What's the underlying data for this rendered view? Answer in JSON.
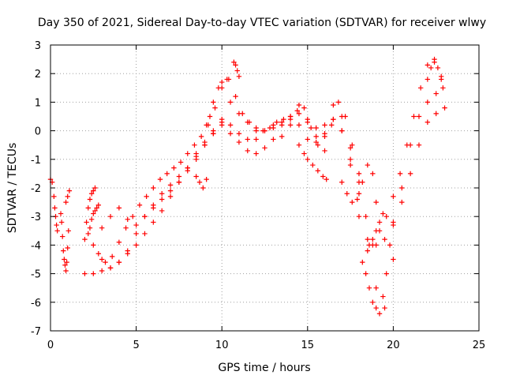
{
  "chart_data": {
    "type": "scatter",
    "title": "Day 350 of 2021, Sidereal Day-to-day VTEC variation (SDTVAR) for receiver wlwy",
    "xlabel": "GPS time / hours",
    "ylabel": "SDTVAR / TECUs",
    "xlim": [
      0,
      25
    ],
    "ylim": [
      -7,
      3
    ],
    "x_ticks": [
      0,
      5,
      10,
      15,
      20,
      25
    ],
    "y_ticks": [
      -7,
      -6,
      -5,
      -4,
      -3,
      -2,
      -1,
      0,
      1,
      2,
      3
    ],
    "grid": true,
    "marker": "plus",
    "color": "#ff0000",
    "series": [
      {
        "x": [
          0.0,
          0.1,
          0.2,
          0.25,
          0.3,
          0.35,
          0.4
        ],
        "y": [
          -1.7,
          -1.8,
          -2.3,
          -2.7,
          -3.0,
          -3.3,
          -3.5
        ]
      },
      {
        "x": [
          0.6,
          0.65,
          0.7,
          0.75,
          0.8,
          0.85,
          0.9,
          0.95,
          1.0,
          1.05
        ],
        "y": [
          -2.9,
          -3.2,
          -3.7,
          -4.2,
          -4.5,
          -4.7,
          -4.9,
          -4.6,
          -4.1,
          -3.5
        ]
      },
      {
        "x": [
          0.9,
          1.0,
          1.1
        ],
        "y": [
          -2.5,
          -2.3,
          -2.1
        ]
      },
      {
        "x": [
          2.0,
          2.1,
          2.2,
          2.3,
          2.4,
          2.5,
          2.6
        ],
        "y": [
          -3.8,
          -3.2,
          -2.7,
          -2.4,
          -2.2,
          -2.1,
          -2.0
        ]
      },
      {
        "x": [
          2.2,
          2.3,
          2.4,
          2.5,
          2.6,
          2.7,
          2.8
        ],
        "y": [
          -3.6,
          -3.4,
          -3.1,
          -2.9,
          -2.8,
          -2.7,
          -2.6
        ]
      },
      {
        "x": [
          2.0,
          2.5,
          3.0,
          3.5,
          4.0,
          4.5,
          5.0,
          5.5,
          6.0,
          6.5,
          7.0,
          7.5,
          8.0,
          8.5,
          9.0,
          9.5,
          10.0,
          10.5,
          11.0,
          11.5,
          12.0,
          12.5,
          13.0,
          13.5,
          14.0,
          14.5,
          15.0,
          15.5,
          16.0,
          16.5,
          17.0,
          17.5,
          18.0,
          18.5,
          19.0,
          19.5,
          20.0,
          20.5,
          21.0,
          21.5,
          22.0,
          22.5,
          23.0
        ],
        "y": [
          -5.0,
          -5.0,
          -4.9,
          -4.8,
          -4.6,
          -4.3,
          -4.0,
          -3.6,
          -3.2,
          -2.8,
          -2.3,
          -1.8,
          -1.3,
          -0.8,
          -0.4,
          0.0,
          0.3,
          0.2,
          -0.1,
          -0.3,
          -0.3,
          0.0,
          0.2,
          0.3,
          0.4,
          0.2,
          -0.3,
          -0.4,
          -0.1,
          0.4,
          0.0,
          -1.2,
          -3.0,
          -4.2,
          -4.0,
          -3.8,
          -3.3,
          -2.5,
          -1.5,
          -0.5,
          0.3,
          0.6,
          0.8
        ]
      },
      {
        "x": [
          2.5,
          3.0,
          3.5,
          4.0,
          4.5,
          5.0,
          5.5,
          6.0,
          6.5,
          7.0,
          7.5,
          8.0,
          8.5,
          9.0,
          9.5,
          10.0,
          10.5,
          11.0,
          11.5,
          12.0,
          12.5,
          13.0,
          13.5,
          14.0,
          14.5,
          15.0,
          15.5,
          16.0,
          16.5,
          17.0,
          17.5,
          18.0,
          18.5,
          19.0,
          19.5,
          20.0,
          20.5,
          21.0,
          21.5,
          22.0,
          22.5
        ],
        "y": [
          -4.0,
          -4.5,
          -4.8,
          -4.6,
          -4.2,
          -3.6,
          -3.0,
          -2.6,
          -2.2,
          -1.9,
          -1.6,
          -1.3,
          -0.9,
          -0.5,
          -0.1,
          0.4,
          1.0,
          0.6,
          0.3,
          0.0,
          0.0,
          0.1,
          0.2,
          0.5,
          0.9,
          0.4,
          -0.2,
          0.2,
          0.9,
          0.5,
          -0.6,
          -2.2,
          -3.8,
          -5.5,
          -6.2,
          -4.5,
          -2.0,
          -0.5,
          0.5,
          1.0,
          1.3
        ]
      },
      {
        "x": [
          2.8,
          3.2,
          3.6,
          4.0,
          4.4,
          4.8,
          5.2,
          5.6,
          6.0,
          6.4,
          6.8,
          7.2,
          7.6,
          8.0,
          8.4,
          8.8,
          9.2,
          9.6,
          10.0,
          10.4,
          10.8,
          11.2,
          11.6,
          12.0,
          12.4,
          12.8,
          13.2,
          13.6,
          14.0,
          14.4,
          14.8,
          15.2,
          15.6,
          16.0,
          16.4,
          16.8,
          17.2,
          17.6,
          18.0,
          18.4,
          18.8,
          19.2,
          19.6,
          20.0,
          20.4,
          20.8,
          21.2,
          21.6,
          22.0,
          22.4,
          22.8
        ],
        "y": [
          -4.3,
          -4.6,
          -4.4,
          -3.9,
          -3.4,
          -3.0,
          -2.6,
          -2.3,
          -2.0,
          -1.7,
          -1.5,
          -1.3,
          -1.1,
          -0.8,
          -0.5,
          -0.2,
          0.2,
          0.8,
          1.5,
          1.8,
          1.2,
          0.6,
          0.3,
          0.1,
          0.0,
          0.1,
          0.3,
          0.4,
          0.5,
          0.7,
          0.8,
          0.1,
          -0.5,
          -0.7,
          0.2,
          1.0,
          0.5,
          -0.5,
          -1.8,
          -3.0,
          -4.0,
          -3.5,
          -3.0,
          -2.3,
          -1.5,
          -0.5,
          0.5,
          1.5,
          2.3,
          2.4,
          1.8
        ]
      },
      {
        "x": [
          3.0,
          3.5,
          4.0,
          4.5,
          5.0,
          5.5,
          6.0,
          6.5,
          7.0,
          7.5,
          8.0,
          8.5,
          9.0,
          9.5,
          10.0,
          10.5,
          11.0,
          11.5,
          12.0,
          12.5,
          13.0,
          13.5,
          14.0,
          14.5,
          15.0,
          15.5,
          16.0,
          16.5,
          17.0,
          17.5,
          18.0
        ],
        "y": [
          -3.4,
          -3.0,
          -2.7,
          -3.1,
          -3.3,
          -3.0,
          -2.7,
          -2.4,
          -2.1,
          -1.8,
          -1.4,
          -1.0,
          -0.5,
          -0.1,
          0.2,
          -0.1,
          -0.4,
          -0.7,
          -0.8,
          -0.6,
          -0.3,
          -0.2,
          0.2,
          0.6,
          0.3,
          0.1,
          -0.2,
          0.4,
          0.0,
          -1.0,
          -1.5
        ]
      },
      {
        "x": [
          8.5,
          8.7,
          8.9,
          9.1
        ],
        "y": [
          -1.6,
          -1.8,
          -2.0,
          -1.7
        ]
      },
      {
        "x": [
          9.1,
          9.3,
          9.5,
          9.8,
          10.0,
          10.3
        ],
        "y": [
          0.2,
          0.5,
          1.0,
          1.5,
          1.7,
          1.8
        ]
      },
      {
        "x": [
          10.7,
          10.8,
          10.9,
          11.0
        ],
        "y": [
          2.4,
          2.3,
          2.1,
          1.9
        ]
      },
      {
        "x": [
          14.5,
          14.8,
          15.0,
          15.3,
          15.6,
          15.9,
          16.1
        ],
        "y": [
          -0.5,
          -0.8,
          -1.0,
          -1.2,
          -1.4,
          -1.6,
          -1.7
        ]
      },
      {
        "x": [
          17.0,
          17.3,
          17.6,
          17.9,
          18.2,
          18.5,
          18.8,
          19.0
        ],
        "y": [
          -1.8,
          -2.2,
          -2.5,
          -2.4,
          -1.8,
          -1.2,
          -1.5,
          -2.5
        ]
      },
      {
        "x": [
          18.2,
          18.4,
          18.6,
          18.8,
          19.0,
          19.2,
          19.4,
          19.6,
          19.8,
          20.0
        ],
        "y": [
          -4.6,
          -5.0,
          -5.5,
          -6.0,
          -6.2,
          -6.4,
          -5.8,
          -5.0,
          -4.0,
          -3.2
        ]
      },
      {
        "x": [
          18.6,
          18.8,
          19.0,
          19.2,
          19.4
        ],
        "y": [
          -4.0,
          -3.8,
          -3.5,
          -3.2,
          -2.9
        ]
      },
      {
        "x": [
          22.0,
          22.2,
          22.4,
          22.6,
          22.8,
          22.9
        ],
        "y": [
          1.8,
          2.2,
          2.5,
          2.2,
          1.9,
          1.5
        ]
      }
    ]
  }
}
